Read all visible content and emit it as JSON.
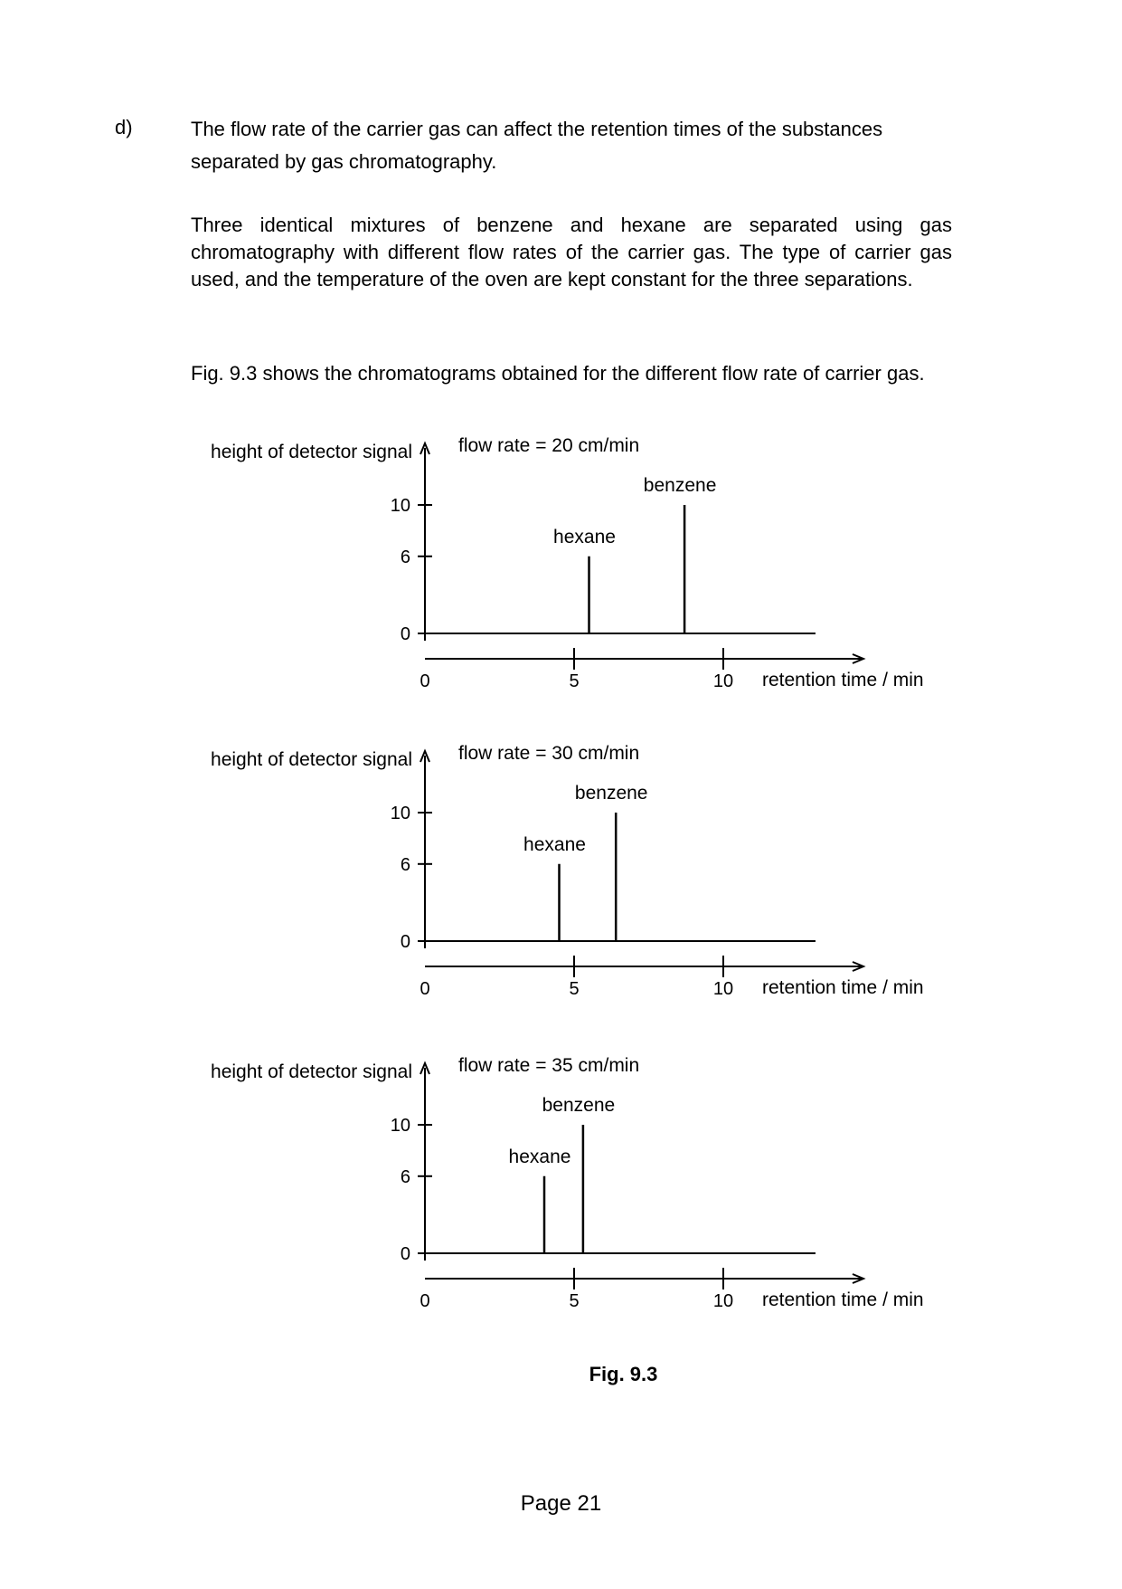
{
  "question": {
    "label": "d)",
    "paragraph1": "The flow rate of the carrier gas can affect the retention times of the substances separated by gas chromatography.",
    "paragraph2": "Three identical mixtures of benzene and hexane are separated using gas chromatography with different flow rates of the carrier gas. The type of carrier gas used, and the temperature of the oven are kept constant for the three separations.",
    "paragraph3": "Fig. 9.3 shows the chromatograms obtained for the different flow rate of carrier gas."
  },
  "figure_caption": "Fig. 9.3",
  "page_number": "Page 21",
  "chart_data": [
    {
      "type": "bar",
      "title": "flow rate = 20 cm/min",
      "ylabel": "height of detector signal",
      "xlabel": "retention time / min",
      "y_ticks": [
        0,
        6,
        10
      ],
      "x_ticks": [
        0,
        5,
        10
      ],
      "xlim": [
        0,
        13
      ],
      "ylim": [
        0,
        10
      ],
      "peaks": [
        {
          "name": "hexane",
          "x": 5.5,
          "y": 6
        },
        {
          "name": "benzene",
          "x": 8.7,
          "y": 10
        }
      ]
    },
    {
      "type": "bar",
      "title": "flow rate = 30 cm/min",
      "ylabel": "height of detector signal",
      "xlabel": "retention time / min",
      "y_ticks": [
        0,
        6,
        10
      ],
      "x_ticks": [
        0,
        5,
        10
      ],
      "xlim": [
        0,
        13
      ],
      "ylim": [
        0,
        10
      ],
      "peaks": [
        {
          "name": "hexane",
          "x": 4.5,
          "y": 6
        },
        {
          "name": "benzene",
          "x": 6.4,
          "y": 10
        }
      ]
    },
    {
      "type": "bar",
      "title": "flow rate = 35 cm/min",
      "ylabel": "height of detector signal",
      "xlabel": "retention time / min",
      "y_ticks": [
        0,
        6,
        10
      ],
      "x_ticks": [
        0,
        5,
        10
      ],
      "xlim": [
        0,
        13
      ],
      "ylim": [
        0,
        10
      ],
      "peaks": [
        {
          "name": "hexane",
          "x": 4.0,
          "y": 6
        },
        {
          "name": "benzene",
          "x": 5.3,
          "y": 10
        }
      ]
    }
  ]
}
